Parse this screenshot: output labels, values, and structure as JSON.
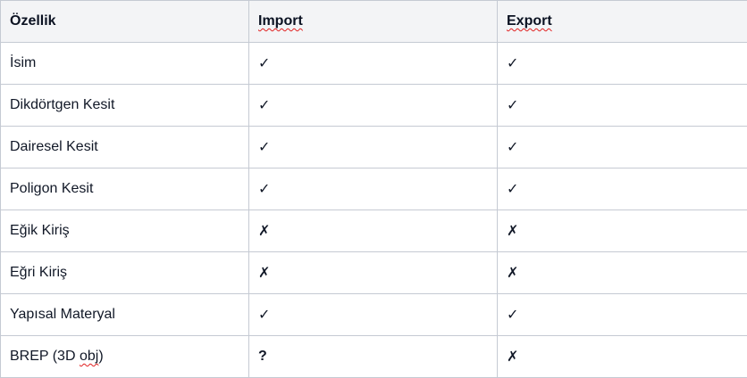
{
  "table": {
    "headers": [
      "Özellik",
      "Import",
      "Export"
    ],
    "rows": [
      {
        "feature": "İsim",
        "import": "✓",
        "export": "✓"
      },
      {
        "feature": "Dikdörtgen Kesit",
        "import": "✓",
        "export": "✓"
      },
      {
        "feature": "Dairesel Kesit",
        "import": "✓",
        "export": "✓"
      },
      {
        "feature": "Poligon Kesit",
        "import": "✓",
        "export": "✓"
      },
      {
        "feature": "Eğik Kiriş",
        "import": "✗",
        "export": "✗"
      },
      {
        "feature": "Eğri Kiriş",
        "import": "✗",
        "export": "✗"
      },
      {
        "feature": "Yapısal Materyal",
        "import": "✓",
        "export": "✓"
      },
      {
        "feature": "BREP (3D obj)",
        "import": "?",
        "export": "✗"
      }
    ]
  },
  "colors": {
    "header_bg": "#f3f4f6",
    "border": "#c5cad3",
    "text": "#111827",
    "spellcheck_underline": "#e02020"
  }
}
